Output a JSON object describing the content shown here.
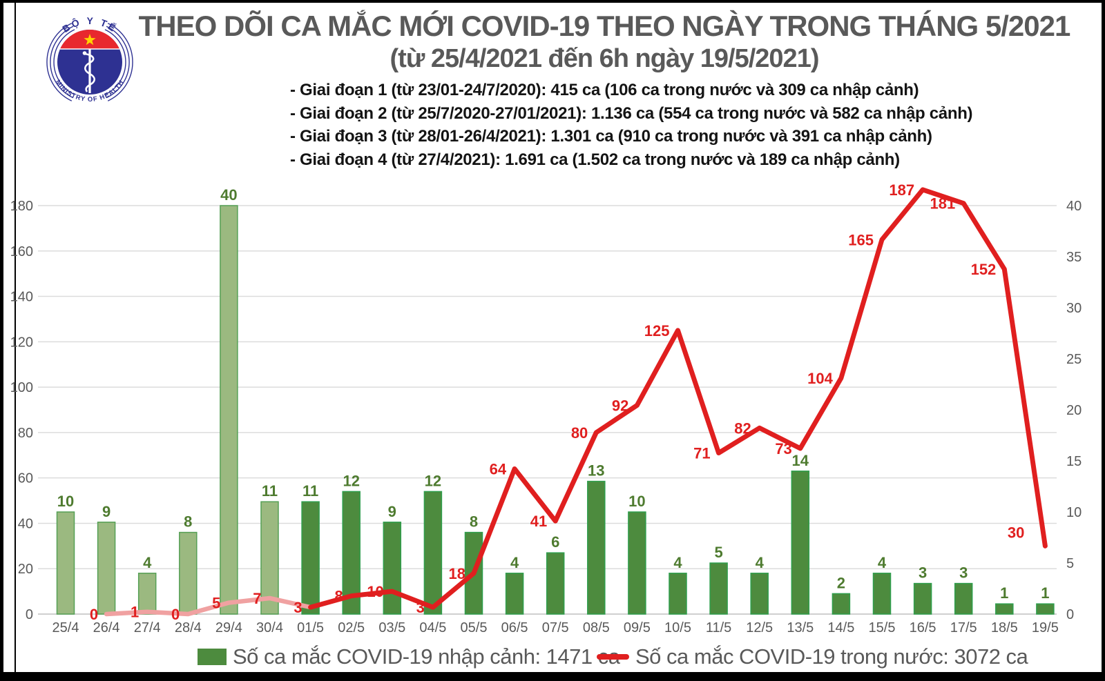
{
  "logo": {
    "arc_top": "BỘ Y TẾ",
    "arc_bottom": "MINISTRY OF HEALTH"
  },
  "header": {
    "title": "THEO DÕI CA MẮC MỚI COVID-19 THEO NGÀY TRONG THÁNG 5/2021",
    "subtitle": "(từ 25/4/2021 đến 6h ngày 19/5/2021)",
    "phases": [
      "- Giai đoạn 1 (từ 23/01-24/7/2020): 415 ca (106 ca trong nước và 309 ca nhập cảnh)",
      "- Giai đoạn 2 (từ 25/7/2020-27/01/2021): 1.136 ca (554 ca trong nước và 582 ca nhập cảnh)",
      "- Giai đoạn 3 (từ 28/01-26/4/2021): 1.301 ca (910 ca trong nước và 391 ca nhập cảnh)",
      "- Giai đoạn 4 (từ 27/4/2021): 1.691 ca (1.502 ca trong nước và 189 ca nhập cảnh)"
    ]
  },
  "legend": {
    "imported_label": "Số ca mắc COVID-19 nhập cảnh: 1471 ca",
    "domestic_label": "Số ca mắc COVID-19 trong nước: 3072 ca"
  },
  "colors": {
    "bar_may_fill": "#4d8b3e",
    "bar_may_border": "#2f9e4d",
    "bar_apr_fill": "#9bb980",
    "bar_apr_border": "#55a055",
    "line_red": "#e01f1f",
    "line_red_light": "#f0a1a1",
    "bar_label": "#4e7b2f",
    "axis_text": "#595959",
    "grid": "#dcdcdc",
    "axis_line": "#cfcfcf"
  },
  "chart_data": {
    "type": "combo-bar-line",
    "title": "THEO DÕI CA MẮC MỚI COVID-19 THEO NGÀY TRONG THÁNG 5/2021",
    "categories": [
      "25/4",
      "26/4",
      "27/4",
      "28/4",
      "29/4",
      "30/4",
      "01/5",
      "02/5",
      "03/5",
      "04/5",
      "05/5",
      "06/5",
      "07/5",
      "08/5",
      "09/5",
      "10/5",
      "11/5",
      "12/5",
      "13/5",
      "14/5",
      "15/5",
      "16/5",
      "17/5",
      "18/5",
      "19/5"
    ],
    "series": [
      {
        "name": "Số ca mắc COVID-19 nhập cảnh",
        "type": "bar",
        "axis": "right",
        "values": [
          10,
          9,
          4,
          8,
          40,
          11,
          11,
          12,
          9,
          12,
          8,
          4,
          6,
          13,
          10,
          4,
          5,
          4,
          14,
          2,
          4,
          3,
          3,
          1,
          1
        ]
      },
      {
        "name": "Số ca mắc COVID-19 trong nước",
        "type": "line",
        "axis": "left",
        "values": [
          null,
          0,
          1,
          0,
          5,
          7,
          3,
          8,
          10,
          3,
          18,
          64,
          41,
          80,
          92,
          125,
          71,
          82,
          73,
          104,
          165,
          187,
          181,
          152,
          30
        ]
      }
    ],
    "left_axis": {
      "min": 0,
      "max": 180,
      "step": 20,
      "ticks": [
        0,
        20,
        40,
        60,
        80,
        100,
        120,
        140,
        160,
        180
      ]
    },
    "right_axis": {
      "min": 0,
      "max": 40,
      "step": 5,
      "ticks": [
        0,
        5,
        10,
        15,
        20,
        25,
        30,
        35,
        40
      ]
    },
    "may_start_index": 6,
    "grid": "horizontal",
    "legend_position": "bottom"
  }
}
